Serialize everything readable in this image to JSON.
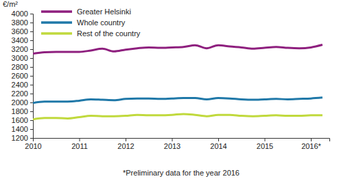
{
  "chart_data": {
    "type": "line",
    "y_label": "€/m²",
    "annotations": [
      "*Preliminary data for the year 2016"
    ],
    "x": [
      2010,
      2010.25,
      2010.5,
      2010.75,
      2011,
      2011.25,
      2011.5,
      2011.75,
      2012,
      2012.25,
      2012.5,
      2012.75,
      2013,
      2013.25,
      2013.5,
      2013.75,
      2014,
      2014.25,
      2014.5,
      2014.75,
      2015,
      2015.25,
      2015.5,
      2015.75,
      2016,
      2016.25
    ],
    "series": [
      {
        "name": "Greater Helsinki",
        "color": "#8e1f7e",
        "values": [
          3100,
          3130,
          3140,
          3140,
          3140,
          3170,
          3210,
          3150,
          3190,
          3220,
          3240,
          3230,
          3240,
          3250,
          3290,
          3220,
          3290,
          3260,
          3240,
          3210,
          3230,
          3250,
          3230,
          3220,
          3240,
          3300
        ]
      },
      {
        "name": "Whole country",
        "color": "#1f78a8",
        "values": [
          1990,
          2020,
          2020,
          2020,
          2040,
          2070,
          2060,
          2050,
          2080,
          2090,
          2090,
          2080,
          2090,
          2100,
          2100,
          2070,
          2100,
          2090,
          2070,
          2060,
          2070,
          2080,
          2070,
          2080,
          2090,
          2110
        ]
      },
      {
        "name": "Rest of the country",
        "color": "#c0d93c",
        "values": [
          1620,
          1650,
          1650,
          1640,
          1670,
          1700,
          1690,
          1690,
          1700,
          1720,
          1710,
          1710,
          1720,
          1740,
          1720,
          1690,
          1720,
          1720,
          1700,
          1690,
          1700,
          1710,
          1700,
          1700,
          1710,
          1710
        ]
      }
    ],
    "xlim": [
      2010,
      2016.4
    ],
    "xticks": [
      2010,
      2011,
      2012,
      2013,
      2014,
      2015,
      {
        "value": 2016,
        "label": "2016*"
      }
    ],
    "ylim": [
      1200,
      4000
    ],
    "yticks": [
      1200,
      1400,
      1600,
      1800,
      2000,
      2200,
      2400,
      2600,
      2800,
      3000,
      3200,
      3400,
      3600,
      3800,
      4000
    ],
    "grid": false,
    "legend": "upper left"
  }
}
